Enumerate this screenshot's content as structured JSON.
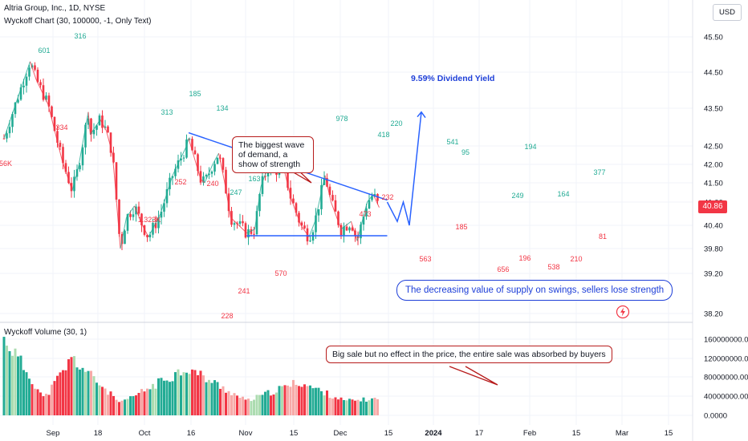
{
  "header": {
    "title": "Altria Group, Inc., 1D, NYSE",
    "subtitle": "Wyckoff Chart (30, 100000, -1, Only Text)",
    "currency": "USD",
    "volume_title": "Wyckoff Volume (30, 1)",
    "last_price": "40.86"
  },
  "annotations": {
    "demand_wave": "The biggest wave of demand, a show of strength",
    "supply_swings": "The decreasing value of supply on swings, sellers lose strength",
    "big_sale": "Big sale but no effect in the price, the entire sale was absorbed by buyers",
    "dividend_yield": "9.59% Dividend Yield"
  },
  "colors": {
    "up": "#22ab94",
    "down": "#f23645",
    "up_light": "#acdcb0",
    "down_light": "#f7a9a7",
    "trendline": "#2962ff",
    "note_border": "#b71c1c"
  },
  "chart_data": [
    {
      "type": "candlestick",
      "x_ticks": [
        "Sep",
        "18",
        "Oct",
        "16",
        "Nov",
        "15",
        "Dec",
        "15",
        "2024",
        "17",
        "Feb",
        "15",
        "Mar",
        "15"
      ],
      "y_ticks": [
        "45.50",
        "44.50",
        "43.50",
        "42.50",
        "42.00",
        "41.50",
        "41.00",
        "40.40",
        "39.80",
        "39.20",
        "38.20"
      ],
      "ylim": [
        38.0,
        46.0
      ],
      "price_points": [
        [
          "Aug 30",
          42.7
        ],
        [
          "Sep 12",
          44.8
        ],
        [
          "Sep 15",
          44.3
        ],
        [
          "Sep 21",
          43.6
        ],
        [
          "Sep 28",
          42.1
        ],
        [
          "Oct 03",
          41.3
        ],
        [
          "Oct 06",
          41.9
        ],
        [
          "Oct 11",
          43.4
        ],
        [
          "Oct 12",
          42.8
        ],
        [
          "Oct 17",
          43.2
        ],
        [
          "Oct 20",
          42.9
        ],
        [
          "Oct 23",
          42.3
        ],
        [
          "Oct 24",
          41.7
        ],
        [
          "Oct 27",
          39.8
        ],
        [
          "Oct 30",
          40.6
        ],
        [
          "Nov 03",
          40.9
        ],
        [
          "Nov 07",
          40.4
        ],
        [
          "Nov 10",
          40.1
        ],
        [
          "Nov 16",
          40.7
        ],
        [
          "Nov 22",
          41.7
        ],
        [
          "Nov 29",
          42.5
        ],
        [
          "Nov 30",
          42.7
        ],
        [
          "Dec 06",
          41.6
        ],
        [
          "Dec 08",
          41.5
        ],
        [
          "Dec 12",
          42.0
        ],
        [
          "Dec 15",
          42.3
        ],
        [
          "Dec 18",
          41.5
        ],
        [
          "Dec 21",
          40.6
        ],
        [
          "Dec 29",
          40.2
        ],
        [
          "Jan 02",
          40.3
        ],
        [
          "Jan 05",
          41.4
        ],
        [
          "Jan 09",
          42.0
        ],
        [
          "Jan 12",
          41.8
        ],
        [
          "Jan 16",
          42.0
        ],
        [
          "Jan 20",
          41.1
        ],
        [
          "Jan 25",
          40.4
        ],
        [
          "Jan 29",
          40.1
        ],
        [
          "Feb 01",
          40.5
        ],
        [
          "Feb 06",
          41.7
        ],
        [
          "Feb 09",
          41.0
        ],
        [
          "Feb 14",
          40.3
        ],
        [
          "Feb 19",
          40.5
        ],
        [
          "Feb 22",
          40.0
        ],
        [
          "Feb 27",
          41.0
        ],
        [
          "Mar 01",
          41.2
        ],
        [
          "Mar 04",
          40.86
        ]
      ],
      "wave_labels": {
        "green": [
          "601",
          "316",
          "313",
          "185",
          "134",
          "247",
          "163",
          "978",
          "418",
          "220",
          "541",
          "95",
          "194",
          "249",
          "377",
          "164"
        ],
        "red": [
          "56K",
          "334",
          "1.323K",
          "252",
          "240",
          "241",
          "228",
          "570",
          "473",
          "232",
          "563",
          "185",
          "656",
          "196",
          "538",
          "210",
          "81"
        ]
      },
      "resistance_line": [
        [
          "Nov 30",
          42.85
        ],
        [
          "Mar 08",
          41.05
        ]
      ],
      "support_line": [
        [
          "Dec 29",
          40.13
        ],
        [
          "Mar 08",
          40.13
        ]
      ],
      "projection": [
        [
          "Mar 08",
          41.0
        ],
        [
          "Mar 13",
          40.5
        ],
        [
          "Mar 16",
          41.0
        ],
        [
          "Mar 19",
          40.4
        ],
        [
          "Mar 25",
          43.4
        ]
      ]
    },
    {
      "type": "bar",
      "name": "Wyckoff Volume (30, 1)",
      "y_ticks": [
        "160000000.00",
        "120000000.00",
        "80000000.00",
        "40000000.00",
        "0.0000"
      ],
      "ylim": [
        0,
        165000000
      ],
      "volume_peaks": [
        [
          "Aug 30",
          165000000
        ],
        [
          "Sep 19",
          35000000
        ],
        [
          "Oct 03",
          120000000
        ],
        [
          "Oct 27",
          25000000
        ],
        [
          "Nov 29",
          100000000
        ],
        [
          "Dec 29",
          30000000
        ],
        [
          "Jan 24",
          70000000
        ],
        [
          "Feb 16",
          30000000
        ],
        [
          "Mar 04",
          35000000
        ]
      ]
    }
  ]
}
